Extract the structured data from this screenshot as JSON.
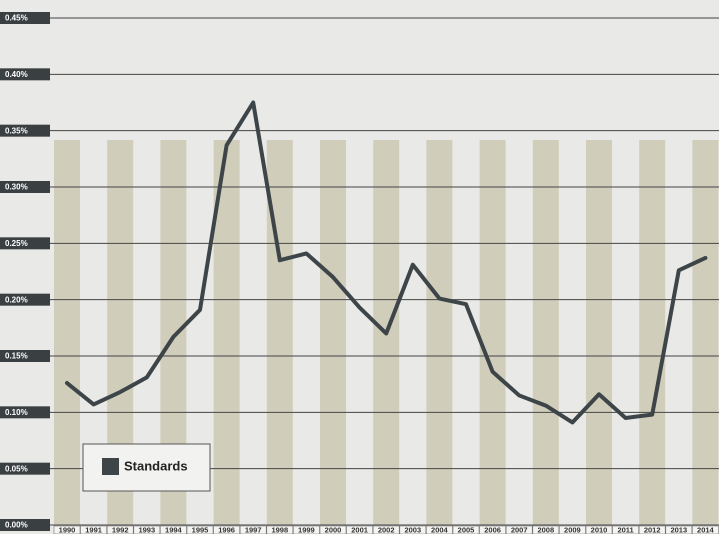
{
  "chart_data": {
    "type": "line",
    "categories": [
      "1990",
      "1991",
      "1992",
      "1993",
      "1994",
      "1995",
      "1996",
      "1997",
      "1998",
      "1999",
      "2000",
      "2001",
      "2002",
      "2003",
      "2004",
      "2005",
      "2006",
      "2007",
      "2008",
      "2009",
      "2010",
      "2011",
      "2012",
      "2013",
      "2014"
    ],
    "series": [
      {
        "name": "Standards",
        "color": "#3d4548",
        "values": [
          0.126,
          0.107,
          0.118,
          0.131,
          0.167,
          0.191,
          0.337,
          0.375,
          0.235,
          0.241,
          0.22,
          0.193,
          0.17,
          0.231,
          0.201,
          0.196,
          0.136,
          0.115,
          0.106,
          0.091,
          0.116,
          0.095,
          0.098,
          0.226,
          0.237
        ]
      }
    ],
    "ylim": [
      0,
      0.45
    ],
    "yticks": [
      {
        "value": 0,
        "label": "0.00%"
      },
      {
        "value": 0.05,
        "label": "0.05%"
      },
      {
        "value": 0.1,
        "label": "0.10%"
      },
      {
        "value": 0.15,
        "label": "0.15%"
      },
      {
        "value": 0.2,
        "label": "0.20%"
      },
      {
        "value": 0.25,
        "label": "0.25%"
      },
      {
        "value": 0.3,
        "label": "0.30%"
      },
      {
        "value": 0.35,
        "label": "0.35%"
      },
      {
        "value": 0.4,
        "label": "0.40%"
      },
      {
        "value": 0.45,
        "label": "0.45%"
      }
    ],
    "grid": true
  }
}
